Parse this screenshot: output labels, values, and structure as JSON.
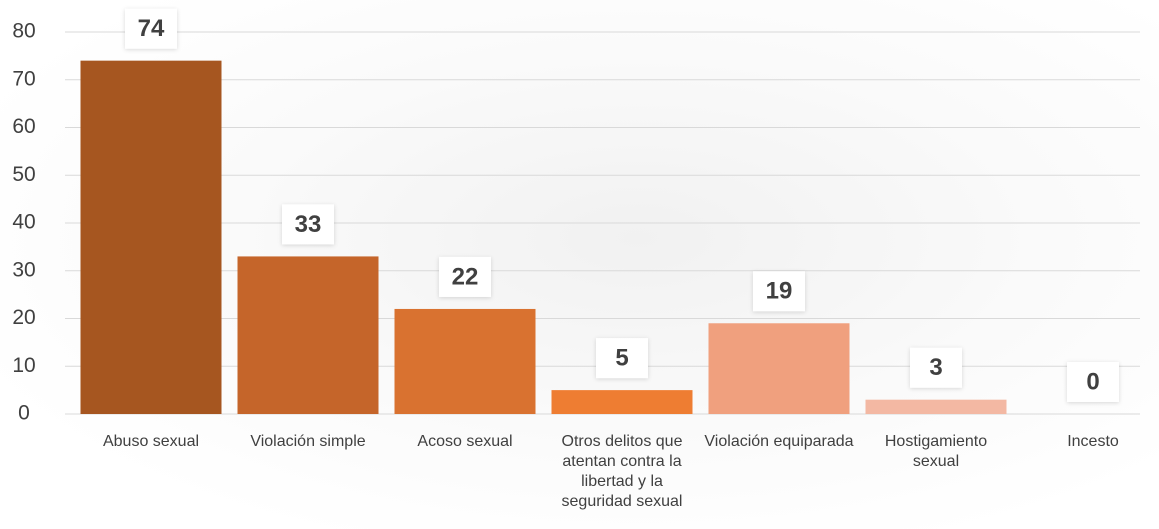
{
  "chart_data": {
    "type": "bar",
    "categories": [
      "Abuso sexual",
      "Violación simple",
      "Acoso sexual",
      "Otros delitos que atentan contra la libertad y la seguridad sexual",
      "Violación equiparada",
      "Hostigamiento sexual",
      "Incesto"
    ],
    "values": [
      74,
      33,
      22,
      5,
      19,
      3,
      0
    ],
    "colors": [
      "#a65620",
      "#c5652a",
      "#d97230",
      "#ee7d32",
      "#f0a07e",
      "#f3b8a3",
      "#f6cdbf"
    ],
    "ylim": [
      0,
      80
    ],
    "yticks": [
      0,
      10,
      20,
      30,
      40,
      50,
      60,
      70,
      80
    ],
    "grid": true
  }
}
